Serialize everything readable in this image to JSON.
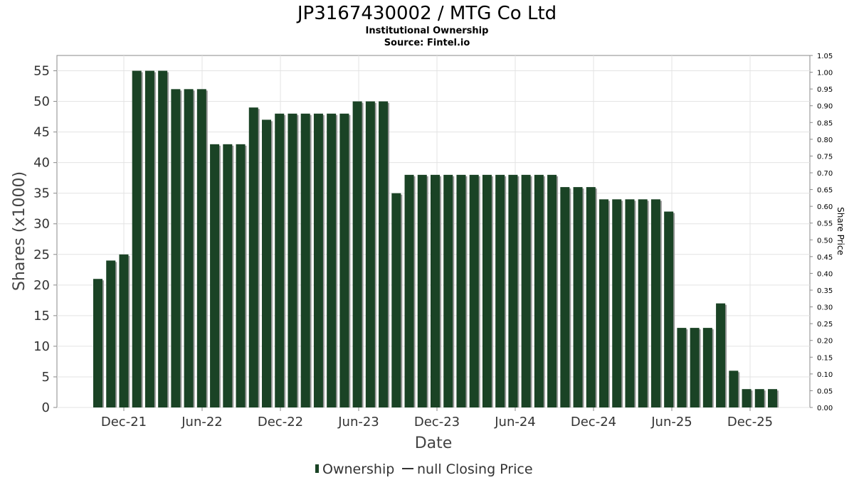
{
  "chart_data": {
    "type": "bar",
    "title": "JP3167430002 / MTG Co Ltd",
    "subtitles": [
      "Institutional Ownership",
      "Source: Fintel.io"
    ],
    "xlabel": "Date",
    "ylabel": "Shares (x1000)",
    "ylabel_right": "Share Price",
    "ylim": [
      0,
      57.5
    ],
    "ylim_right": [
      0,
      1.05
    ],
    "y_ticks": [
      "0",
      "5",
      "10",
      "15",
      "20",
      "25",
      "30",
      "35",
      "40",
      "45",
      "50",
      "55"
    ],
    "y_ticks_right": [
      "0.00",
      "0.05",
      "0.10",
      "0.15",
      "0.20",
      "0.25",
      "0.30",
      "0.35",
      "0.40",
      "0.45",
      "0.50",
      "0.55",
      "0.60",
      "0.65",
      "0.70",
      "0.75",
      "0.80",
      "0.85",
      "0.90",
      "0.95",
      "1.00",
      "1.05"
    ],
    "x_ticks": [
      "Dec-21",
      "Jun-22",
      "Dec-22",
      "Jun-23",
      "Dec-23",
      "Jun-24",
      "Dec-24",
      "Jun-25",
      "Dec-25"
    ],
    "grid": true,
    "bar_color": "#1a4325",
    "values": [
      21,
      24,
      25,
      55,
      55,
      55,
      52,
      52,
      52,
      43,
      43,
      43,
      49,
      47,
      48,
      48,
      48,
      48,
      48,
      48,
      50,
      50,
      50,
      35,
      38,
      38,
      38,
      38,
      38,
      38,
      38,
      38,
      38,
      38,
      38,
      38,
      36,
      36,
      36,
      34,
      34,
      34,
      34,
      34,
      32,
      13,
      13,
      13,
      17,
      6,
      3,
      3,
      3
    ],
    "legend": [
      {
        "label": "Ownership",
        "symbol": "bar",
        "color": "#1a4325"
      },
      {
        "label": "null Closing Price",
        "symbol": "line",
        "color": "#333333"
      }
    ],
    "legend_position": "bottom-center"
  }
}
